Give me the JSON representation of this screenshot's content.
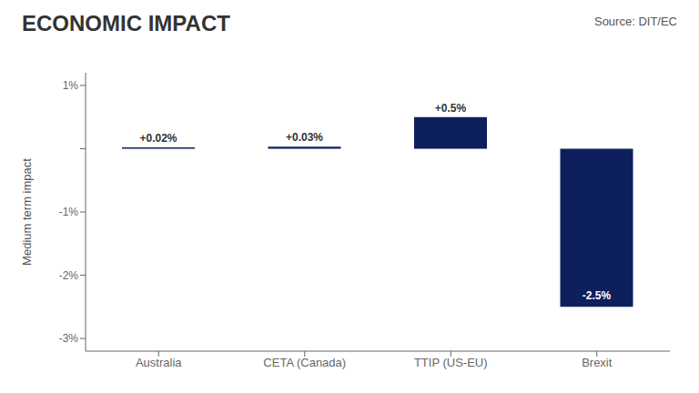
{
  "chart_data": {
    "type": "bar",
    "title": "ECONOMIC IMPACT",
    "annotations": [
      "Source: DIT/EC"
    ],
    "ylabel": "Medium term impact",
    "categories": [
      "Australia",
      "CETA (Canada)",
      "TTIP (US-EU)",
      "Brexit"
    ],
    "values": [
      0.02,
      0.03,
      0.5,
      -2.5
    ],
    "value_labels": [
      "+0.02%",
      "+0.03%",
      "+0.5%",
      "-2.5%"
    ],
    "data_labels": true,
    "color": "#0d1f5c",
    "ylim": [
      -3.2,
      1.2
    ],
    "yticks": [
      {
        "value": -3.0,
        "label": "-3%"
      },
      {
        "value": -2.0,
        "label": "-2%"
      },
      {
        "value": -1.0,
        "label": "-1%"
      },
      {
        "value": 0.0,
        "label": ""
      },
      {
        "value": 1.0,
        "label": "1%"
      }
    ],
    "grid": false
  }
}
